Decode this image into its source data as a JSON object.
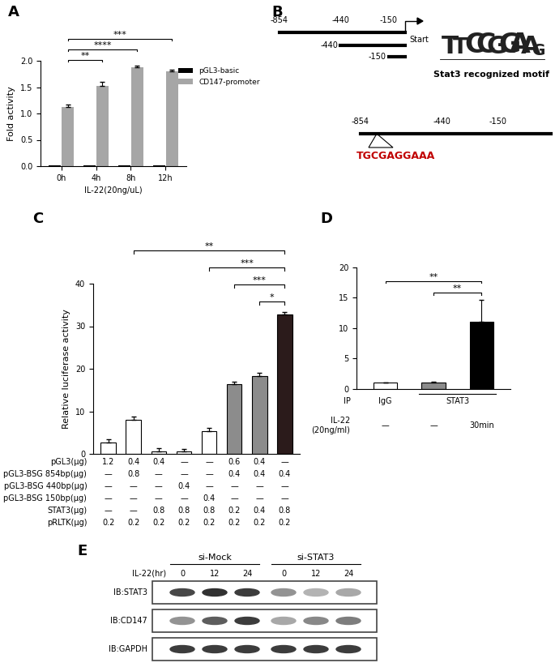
{
  "chart_data": [
    {
      "panel": "A",
      "type": "bar",
      "categories": [
        "0h",
        "4h",
        "8h",
        "12h"
      ],
      "series": [
        {
          "name": "pGL3-basic",
          "color": "#000000",
          "values": [
            0.01,
            0.01,
            0.01,
            0.02
          ]
        },
        {
          "name": "CD147-promoter",
          "color": "#a6a6a6",
          "values": [
            1.12,
            1.53,
            1.87,
            1.8
          ],
          "errors": [
            0.05,
            0.07,
            0.03,
            0.03
          ]
        }
      ],
      "x_label": "IL-22(20ng/uL)",
      "y_label": "Fold activity",
      "ylim": [
        0,
        2.0
      ],
      "yticks": [
        0.0,
        0.5,
        1.0,
        1.5,
        2.0
      ],
      "legend": "upper right",
      "significance": [
        {
          "from": 0,
          "to": 1,
          "label": "**"
        },
        {
          "from": 0,
          "to": 2,
          "label": "****"
        },
        {
          "from": 0,
          "to": 3,
          "label": "***"
        }
      ]
    },
    {
      "panel": "C",
      "type": "bar",
      "categories": [
        null,
        null,
        null,
        null,
        null,
        null,
        null,
        null
      ],
      "values": [
        2.7,
        8.0,
        0.5,
        0.5,
        5.3,
        16.4,
        18.3,
        32.8
      ],
      "errors": [
        0.8,
        0.8,
        0.8,
        0.6,
        0.8,
        0.6,
        0.7,
        0.6
      ],
      "colors": [
        "#ffffff",
        "#ffffff",
        "#ffffff",
        "#ffffff",
        "#ffffff",
        "#8c8c8c",
        "#8c8c8c",
        "#2b1b1b"
      ],
      "y_label": "Relative luciferase activity",
      "ylim": [
        0,
        40
      ],
      "yticks": [
        0,
        10,
        20,
        30,
        40
      ],
      "tick_labels": "y",
      "significance": [
        {
          "from": 6,
          "to": 7,
          "label": "*"
        },
        {
          "from": 5,
          "to": 7,
          "label": "***"
        },
        {
          "from": 4,
          "to": 7,
          "label": "***"
        },
        {
          "from": 1,
          "to": 7,
          "label": "**"
        }
      ],
      "table": {
        "rows": [
          {
            "label": "pGL3(μg)",
            "cells": [
              "1.2",
              "0.4",
              "0.4",
              "—",
              "—",
              "0.6",
              "0.4",
              "—"
            ]
          },
          {
            "label": "pGL3-BSG 854bp(μg)",
            "cells": [
              "—",
              "0.8",
              "—",
              "—",
              "—",
              "0.4",
              "0.4",
              "0.4"
            ]
          },
          {
            "label": "pGL3-BSG 440bp(μg)",
            "cells": [
              "—",
              "—",
              "—",
              "0.4",
              "—",
              "—",
              "—",
              "—"
            ]
          },
          {
            "label": "pGL3-BSG 150bp(μg)",
            "cells": [
              "—",
              "—",
              "—",
              "—",
              "0.4",
              "—",
              "—",
              "—"
            ]
          },
          {
            "label": "STAT3(μg)",
            "cells": [
              "—",
              "—",
              "0.8",
              "0.8",
              "0.8",
              "0.2",
              "0.4",
              "0.8"
            ]
          },
          {
            "label": "pRLTK(μg)",
            "cells": [
              "0.2",
              "0.2",
              "0.2",
              "0.2",
              "0.2",
              "0.2",
              "0.2",
              "0.2"
            ]
          }
        ]
      }
    },
    {
      "panel": "D",
      "type": "bar",
      "categories": [
        null,
        null,
        null
      ],
      "values": [
        1.0,
        1.05,
        11.0
      ],
      "errors": [
        0.0,
        0.2,
        3.6
      ],
      "colors": [
        "#ffffff",
        "#8c8c8c",
        "#000000"
      ],
      "ylim": [
        0,
        20
      ],
      "yticks": [
        0,
        5,
        10,
        15,
        20
      ],
      "tick_labels": "y",
      "significance": [
        {
          "from": 1,
          "to": 2,
          "label": "**"
        },
        {
          "from": 0,
          "to": 2,
          "label": "**"
        }
      ],
      "table": {
        "rows": [
          {
            "label": "IP",
            "cells": [
              {
                "text": "IgG",
                "from": 0,
                "to": 0
              },
              {
                "text": "STAT3",
                "from": 1,
                "to": 2
              }
            ]
          },
          {
            "label": "IL-22\n(20ng/ml)",
            "cells": [
              {
                "text": "—",
                "from": 0,
                "to": 0
              },
              {
                "text": "—",
                "from": 1,
                "to": 1
              },
              {
                "text": "30min",
                "from": 2,
                "to": 2
              }
            ]
          }
        ]
      }
    }
  ],
  "diagram": {
    "panel": "B",
    "promoter_positions": [
      -854,
      -440,
      -150
    ],
    "start": "Start",
    "fragments": [
      -440,
      -150
    ],
    "motif_letters": [
      "T",
      "T",
      "C",
      "C",
      "G",
      "G",
      "A",
      "A",
      "G"
    ],
    "motif_heights": [
      0.9,
      0.7,
      1.0,
      1.0,
      0.9,
      1.0,
      1.0,
      0.9,
      0.4
    ],
    "motif_caption": "Stat3 recognized motif",
    "site_positions": [
      -854,
      -440,
      -150
    ],
    "site_sequence": "TGCGAGGAAA"
  },
  "blot": {
    "panel": "E",
    "treatment_label": "IL-22(hr)",
    "groups": [
      {
        "name": "si-Mock",
        "times": [
          0,
          12,
          24
        ]
      },
      {
        "name": "si-STAT3",
        "times": [
          0,
          12,
          24
        ]
      }
    ],
    "rows": [
      {
        "label": "IB:STAT3",
        "intensities": [
          0.85,
          0.95,
          0.9,
          0.5,
          0.35,
          0.4
        ]
      },
      {
        "label": "IB:CD147",
        "intensities": [
          0.5,
          0.75,
          0.9,
          0.4,
          0.55,
          0.6
        ]
      },
      {
        "label": "IB:GAPDH",
        "intensities": [
          0.9,
          0.9,
          0.9,
          0.9,
          0.9,
          0.9
        ]
      }
    ]
  }
}
